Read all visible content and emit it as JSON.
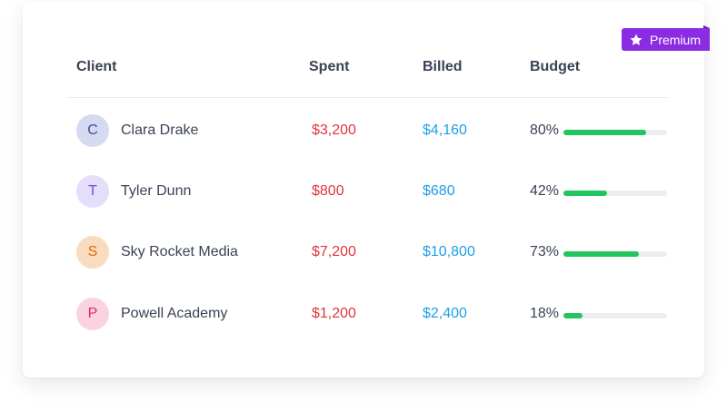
{
  "badge": {
    "label": "Premium",
    "icon": "star-icon",
    "color": "#8b2be2"
  },
  "table": {
    "headers": {
      "client": "Client",
      "spent": "Spent",
      "billed": "Billed",
      "budget": "Budget"
    },
    "rows": [
      {
        "initial": "C",
        "name": "Clara Drake",
        "spent": "$3,200",
        "billed": "$4,160",
        "budget_label": "80%",
        "budget": 0.8,
        "avatar_bg": "#d5daf0",
        "avatar_fg": "#3b4aa8"
      },
      {
        "initial": "T",
        "name": "Tyler Dunn",
        "spent": "$800",
        "billed": "$680",
        "budget_label": "42%",
        "budget": 0.42,
        "avatar_bg": "#e4defb",
        "avatar_fg": "#6c4fd8"
      },
      {
        "initial": "S",
        "name": "Sky Rocket Media",
        "spent": "$7,200",
        "billed": "$10,800",
        "budget_label": "73%",
        "budget": 0.73,
        "avatar_bg": "#f8dcc0",
        "avatar_fg": "#e06a13"
      },
      {
        "initial": "P",
        "name": "Powell Academy",
        "spent": "$1,200",
        "billed": "$2,400",
        "budget_label": "18%",
        "budget": 0.18,
        "avatar_bg": "#fbd3df",
        "avatar_fg": "#e02a6a"
      }
    ]
  }
}
